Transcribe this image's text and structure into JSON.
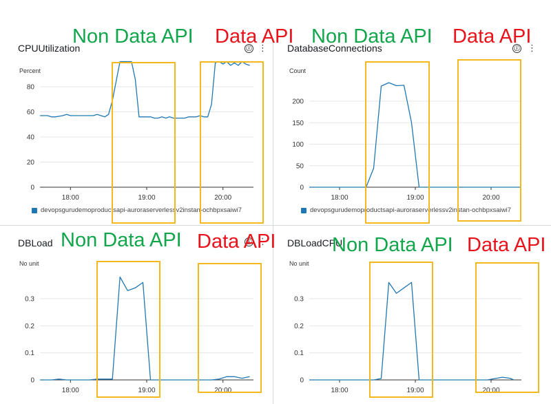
{
  "colors": {
    "series": "#1f77b4",
    "highlight_box": "#f5b81c",
    "annotation_green": "#11a64b",
    "annotation_red": "#e8131b",
    "grid": "#e6e6e6",
    "axis": "#333333"
  },
  "icons": {
    "info": "ⓘ",
    "menu": "⋮"
  },
  "annotations": {
    "non_data_api": "Non Data API",
    "data_api": "Data API"
  },
  "chart_data": [
    {
      "type": "line",
      "title": "CPUUtilization",
      "ylabel": "Percent",
      "yticks": [
        0,
        20,
        40,
        60,
        80
      ],
      "ytick_labels": [
        "0",
        "20",
        "40",
        "60",
        "80"
      ],
      "ylim": [
        0,
        100
      ],
      "x_ticks": [
        "18:00",
        "19:00",
        "20:00"
      ],
      "x_tick_hours": [
        18,
        19,
        20
      ],
      "xlim": [
        17.6,
        20.4
      ],
      "legend": "devopsgurudemoproductsapi-auroraserverlessv2instan-ochbpxsaiwi7",
      "series": [
        {
          "x": [
            17.6,
            17.65,
            17.7,
            17.75,
            17.8,
            17.9,
            17.95,
            18.0,
            18.05,
            18.1,
            18.15,
            18.2,
            18.25,
            18.3,
            18.35,
            18.4,
            18.45,
            18.5,
            18.55,
            18.65,
            18.75,
            18.8,
            18.85,
            18.9,
            18.95,
            19.0,
            19.05,
            19.1,
            19.15,
            19.2,
            19.25,
            19.3,
            19.35,
            19.4,
            19.45,
            19.5,
            19.55,
            19.6,
            19.65,
            19.7,
            19.75,
            19.8,
            19.85,
            19.9,
            19.95,
            20.0,
            20.05,
            20.1,
            20.15,
            20.2,
            20.25,
            20.3,
            20.35
          ],
          "y": [
            57,
            57,
            57,
            56,
            56,
            57,
            58,
            57,
            57,
            57,
            57,
            57,
            57,
            57,
            58,
            57,
            56,
            58,
            69,
            100,
            100,
            100,
            86,
            56,
            56,
            56,
            56,
            55,
            55,
            56,
            55,
            56,
            55,
            55,
            55,
            55,
            56,
            56,
            56,
            57,
            56,
            56,
            66,
            99,
            100,
            98,
            100,
            97,
            99,
            97,
            100,
            98,
            97
          ]
        }
      ]
    },
    {
      "type": "line",
      "title": "DatabaseConnections",
      "ylabel": "Count",
      "yticks": [
        0,
        50,
        100,
        150,
        200
      ],
      "ytick_labels": [
        "0",
        "50",
        "100",
        "150",
        "200"
      ],
      "ylim": [
        0,
        250
      ],
      "x_ticks": [
        "18:00",
        "19:00",
        "20:00"
      ],
      "x_tick_hours": [
        18,
        19,
        20
      ],
      "xlim": [
        17.6,
        20.4
      ],
      "legend": "devopsgurudemoproductsapi-auroraserverlessv2instan-ochbpxsaiwi7",
      "series": [
        {
          "x": [
            17.6,
            18.35,
            18.45,
            18.55,
            18.65,
            18.75,
            18.85,
            18.95,
            19.05,
            19.15,
            19.5,
            20.0,
            20.4
          ],
          "y": [
            0,
            0,
            44,
            235,
            243,
            236,
            237,
            150,
            0,
            0,
            0,
            0,
            0
          ]
        }
      ]
    },
    {
      "type": "line",
      "title": "DBLoad",
      "ylabel": "No unit",
      "yticks": [
        0,
        0.1,
        0.2,
        0.3
      ],
      "ytick_labels": [
        "0",
        "0.1",
        "0.2",
        "0.3"
      ],
      "ylim": [
        0,
        0.4
      ],
      "x_ticks": [
        "18:00",
        "19:00",
        "20:00"
      ],
      "x_tick_hours": [
        18,
        19,
        20
      ],
      "xlim": [
        17.6,
        20.4
      ],
      "series": [
        {
          "x": [
            17.6,
            17.75,
            17.85,
            17.95,
            18.05,
            18.15,
            18.25,
            18.35,
            18.45,
            18.55,
            18.65,
            18.75,
            18.85,
            18.95,
            19.05,
            19.15,
            19.5,
            19.85,
            19.95,
            20.05,
            20.15,
            20.25,
            20.35
          ],
          "y": [
            0,
            0,
            0.003,
            0,
            0,
            0,
            0,
            0.003,
            0.003,
            0.003,
            0.38,
            0.33,
            0.34,
            0.36,
            0,
            0,
            0,
            0,
            0.003,
            0.012,
            0.012,
            0.006,
            0.012
          ]
        }
      ]
    },
    {
      "type": "line",
      "title": "DBLoadCPU",
      "ylabel": "No unit",
      "yticks": [
        0,
        0.1,
        0.2,
        0.3
      ],
      "ytick_labels": [
        "0",
        "0.1",
        "0.2",
        "0.3"
      ],
      "ylim": [
        0,
        0.4
      ],
      "x_ticks": [
        "18:00",
        "19:00",
        "20:00"
      ],
      "x_tick_hours": [
        18,
        19,
        20
      ],
      "xlim": [
        17.6,
        20.4
      ],
      "series": [
        {
          "x": [
            17.6,
            18.35,
            18.45,
            18.55,
            18.65,
            18.75,
            18.85,
            18.95,
            19.05,
            19.15,
            19.5,
            19.95,
            20.05,
            20.15,
            20.25,
            20.3
          ],
          "y": [
            0,
            0,
            0,
            0.005,
            0.36,
            0.32,
            0.34,
            0.36,
            0,
            0,
            0,
            0,
            0.005,
            0.01,
            0.006,
            0
          ]
        }
      ]
    }
  ]
}
